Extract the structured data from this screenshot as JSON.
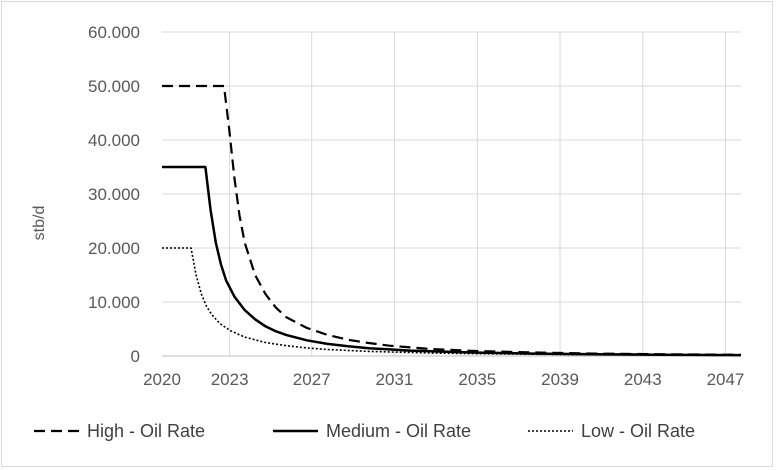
{
  "chart_data": {
    "type": "line",
    "title": "",
    "xlabel": "",
    "ylabel": "stb/d",
    "xlim": [
      2020,
      2048
    ],
    "ylim": [
      0,
      60000
    ],
    "grid": true,
    "legend_position": "bottom",
    "x_tick_labels": [
      "2020",
      "2023",
      "2027",
      "2031",
      "2035",
      "2039",
      "2043",
      "2047"
    ],
    "x_tick_values": [
      2020,
      2023.27,
      2027.24,
      2031.24,
      2035.25,
      2039.25,
      2043.25,
      2047.25
    ],
    "y_tick_labels": [
      "0",
      "10.000",
      "20.000",
      "30.000",
      "40.000",
      "50.000",
      "60.000"
    ],
    "y_tick_values": [
      0,
      10000,
      20000,
      30000,
      40000,
      50000,
      60000
    ],
    "series": [
      {
        "name": "High - Oil Rate",
        "dash": "dashed",
        "color": "#000000",
        "x": [
          2020,
          2021,
          2022,
          2023.0,
          2023.25,
          2023.5,
          2023.75,
          2024,
          2024.5,
          2025,
          2025.5,
          2026,
          2027,
          2028,
          2029,
          2030,
          2031,
          2033,
          2035,
          2038,
          2041,
          2044,
          2048
        ],
        "y": [
          50000,
          50000,
          50000,
          50000,
          42000,
          33000,
          26000,
          21000,
          15000,
          11500,
          9000,
          7200,
          5200,
          3900,
          3000,
          2400,
          1900,
          1300,
          950,
          650,
          450,
          330,
          220
        ]
      },
      {
        "name": "Medium - Oil Rate",
        "dash": "solid",
        "color": "#000000",
        "x": [
          2020,
          2021,
          2022,
          2022.1,
          2022.35,
          2022.6,
          2022.85,
          2023.1,
          2023.5,
          2024,
          2024.5,
          2025,
          2025.5,
          2026,
          2027,
          2028,
          2029,
          2030,
          2032,
          2035,
          2038,
          2041,
          2044,
          2048
        ],
        "y": [
          35000,
          35000,
          35000,
          35000,
          27000,
          21000,
          17000,
          14000,
          11000,
          8500,
          6800,
          5500,
          4600,
          3900,
          2900,
          2250,
          1800,
          1450,
          1000,
          650,
          450,
          320,
          240,
          160
        ]
      },
      {
        "name": "Low - Oil Rate",
        "dash": "dotted",
        "color": "#000000",
        "x": [
          2020,
          2020.5,
          2021,
          2021.4,
          2021.65,
          2021.9,
          2022.15,
          2022.4,
          2022.8,
          2023.3,
          2024,
          2025,
          2026,
          2027,
          2028,
          2030,
          2033,
          2036,
          2040,
          2044,
          2048
        ],
        "y": [
          20000,
          20000,
          20000,
          20000,
          15000,
          11500,
          9200,
          7700,
          6000,
          4700,
          3500,
          2500,
          1900,
          1500,
          1200,
          850,
          550,
          380,
          250,
          170,
          110
        ]
      }
    ]
  }
}
